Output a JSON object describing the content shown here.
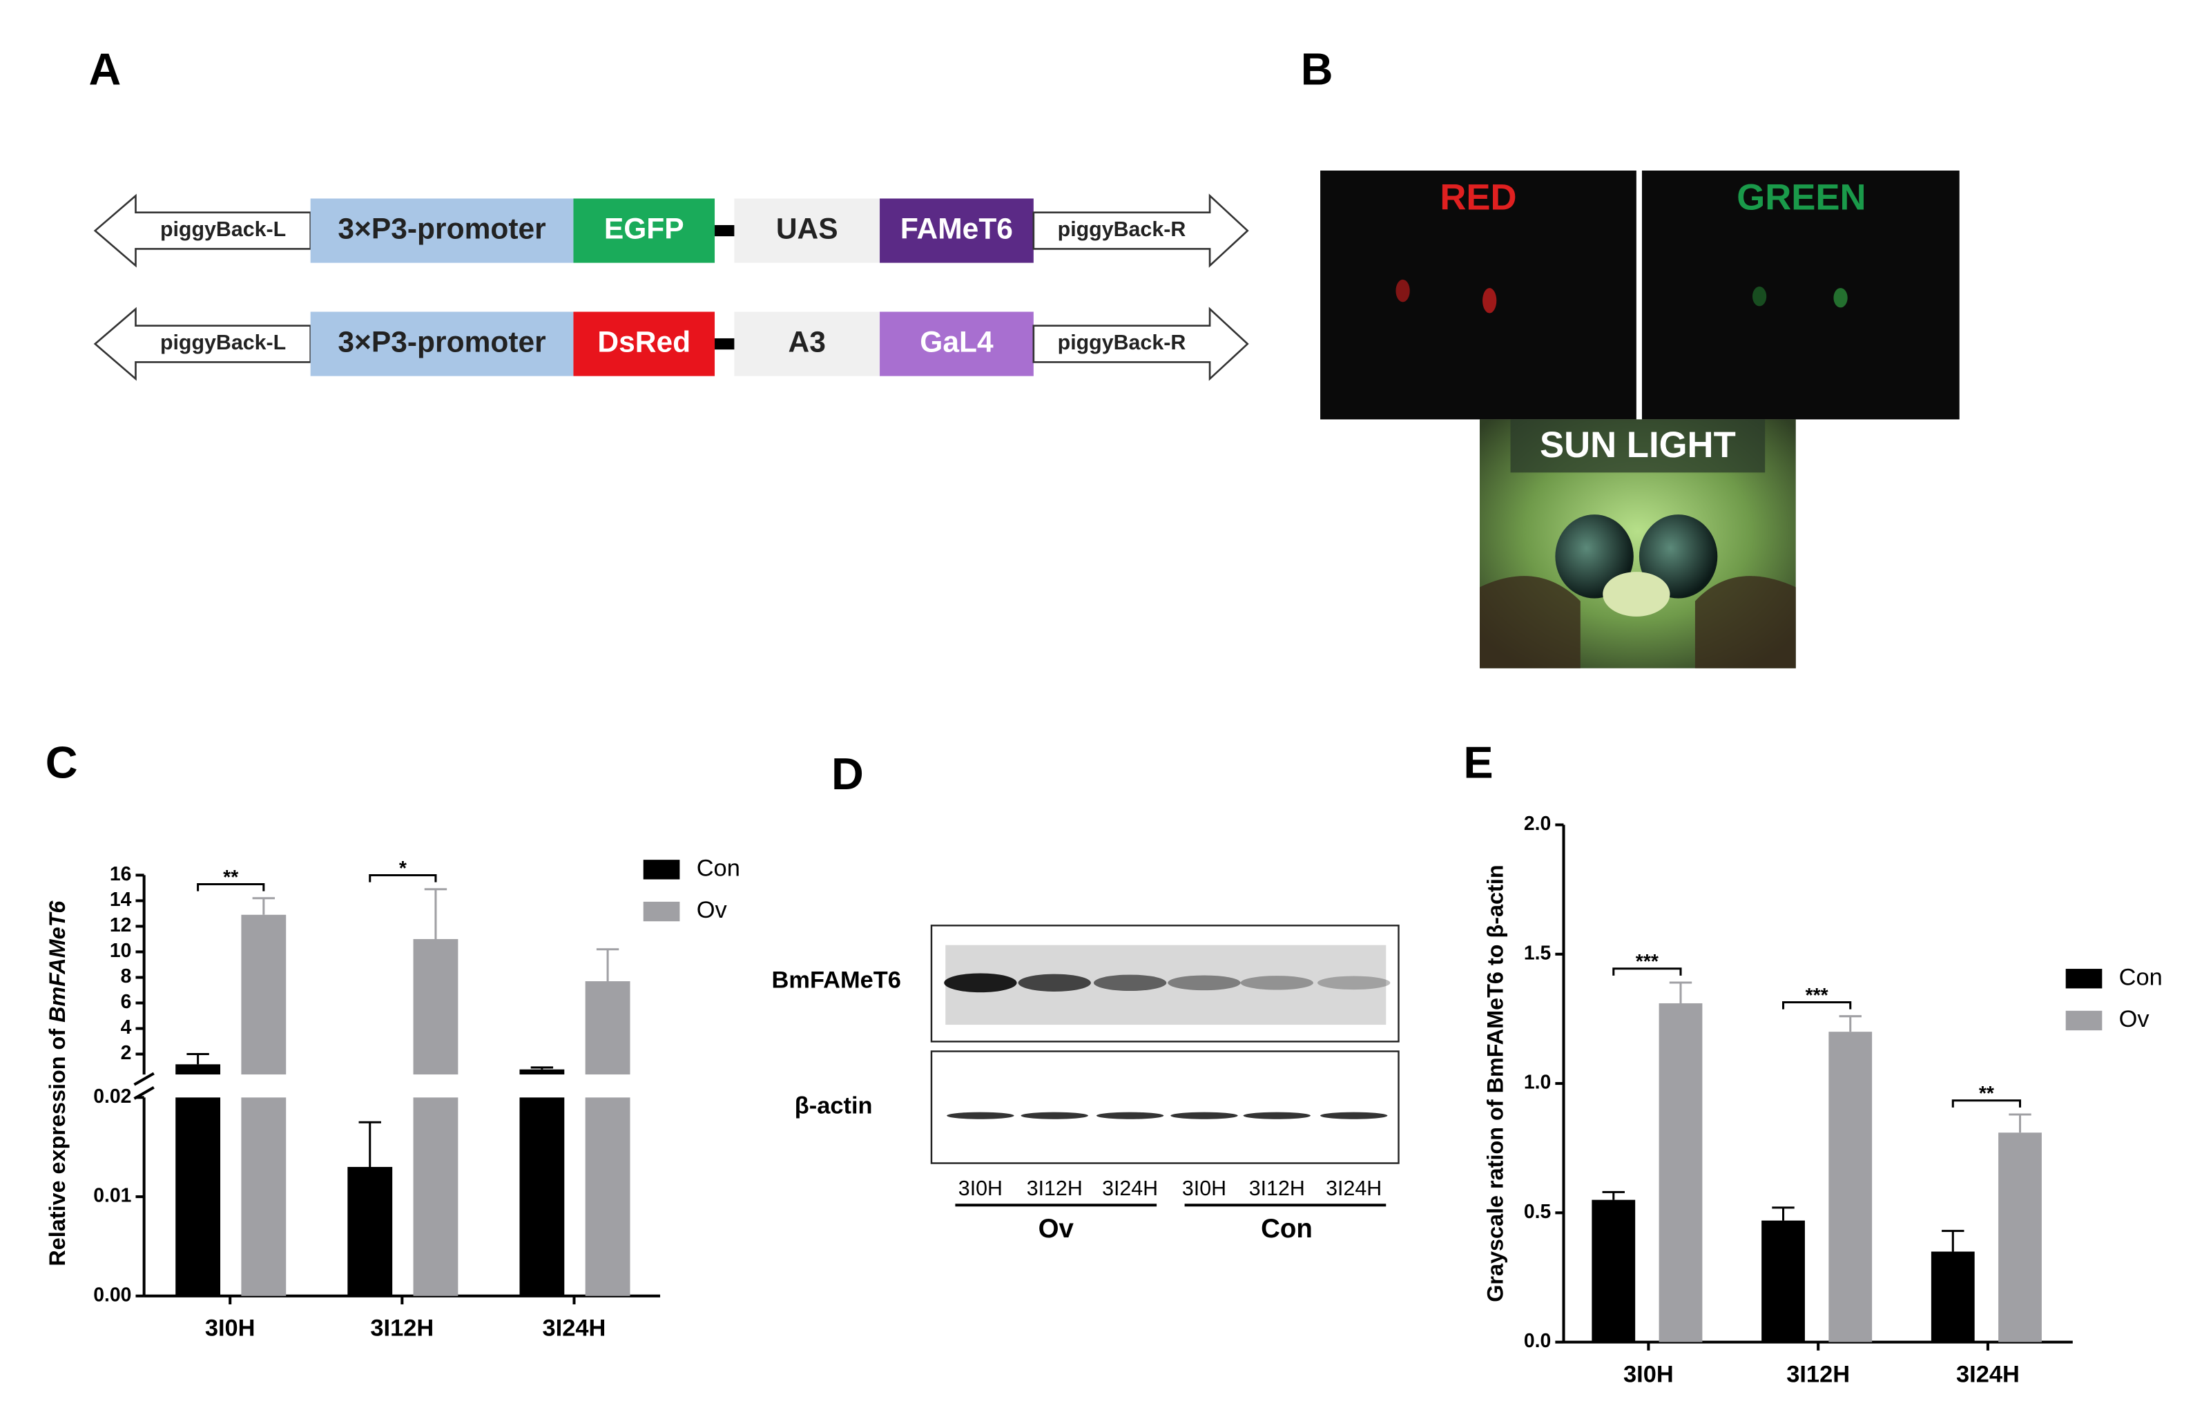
{
  "panels": {
    "A": {
      "label": "A",
      "constructs": [
        {
          "parts": [
            "piggyBack-L",
            "3×P3-promoter",
            "EGFP",
            "UAS",
            "FAMeT6",
            "piggyBack-R"
          ],
          "colors": [
            "#ffffff",
            "#a9c6e6",
            "#1aab5a",
            "#f0f0f0",
            "#5b2a86",
            "#ffffff"
          ]
        },
        {
          "parts": [
            "piggyBack-L",
            "3×P3-promoter",
            "DsRed",
            "A3",
            "GaL4",
            "piggyBack-R"
          ],
          "colors": [
            "#ffffff",
            "#a9c6e6",
            "#e8141c",
            "#f0f0f0",
            "#a86fd0",
            "#ffffff"
          ]
        }
      ]
    },
    "B": {
      "label": "B",
      "images": [
        "RED",
        "GREEN",
        "SUN LIGHT"
      ]
    },
    "D": {
      "label": "D",
      "rows": [
        "BmFAMeT6",
        "β-actin"
      ],
      "lanes": [
        "3I0H",
        "3I12H",
        "3I24H",
        "3I0H",
        "3I12H",
        "3I24H"
      ],
      "groups": [
        "Ov",
        "Con"
      ]
    }
  },
  "chart_data": [
    {
      "type": "bar",
      "label": "C",
      "y_label": {
        "text": "Relative expression of ",
        "gene": "BmFAMeT6"
      },
      "categories": [
        "3I0H",
        "3I12H",
        "3I24H"
      ],
      "series": [
        {
          "name": "Con",
          "color": "#000000",
          "values": [
            1.2,
            0.013,
            0.8
          ],
          "errors": [
            0.8,
            0.0045,
            0.15
          ]
        },
        {
          "name": "Ov",
          "color": "#a0a0a4",
          "values": [
            12.9,
            11.0,
            7.7
          ],
          "errors": [
            1.3,
            3.9,
            2.5
          ]
        }
      ],
      "significance": [
        "**",
        "*",
        null
      ],
      "axis_break": true,
      "ylim": [
        0,
        0.02
      ],
      "yticks": [
        {
          "value": 0,
          "label": "0.00"
        },
        {
          "value": 0.01,
          "label": "0.01"
        },
        {
          "value": 0.02,
          "label": "0.02"
        }
      ],
      "ylim_upper": [
        0.4,
        16
      ],
      "yticks_upper": [
        2,
        4,
        6,
        8,
        10,
        12,
        14,
        16
      ]
    },
    {
      "type": "bar",
      "label": "E",
      "y_label": {
        "text": "Grayscale ration of BmFAMeT6 to β-actin"
      },
      "categories": [
        "3I0H",
        "3I12H",
        "3I24H"
      ],
      "series": [
        {
          "name": "Con",
          "color": "#000000",
          "values": [
            0.55,
            0.47,
            0.35
          ],
          "errors": [
            0.03,
            0.05,
            0.08
          ]
        },
        {
          "name": "Ov",
          "color": "#a0a0a4",
          "values": [
            1.31,
            1.2,
            0.81
          ],
          "errors": [
            0.08,
            0.06,
            0.07
          ]
        }
      ],
      "significance": [
        "***",
        "***",
        "**"
      ],
      "ylim": [
        0,
        2
      ],
      "yticks": [
        {
          "value": 0,
          "label": "0.0"
        },
        {
          "value": 0.5,
          "label": "0.5"
        },
        {
          "value": 1,
          "label": "1.0"
        },
        {
          "value": 1.5,
          "label": "1.5"
        },
        {
          "value": 2,
          "label": "2.0"
        }
      ]
    }
  ]
}
